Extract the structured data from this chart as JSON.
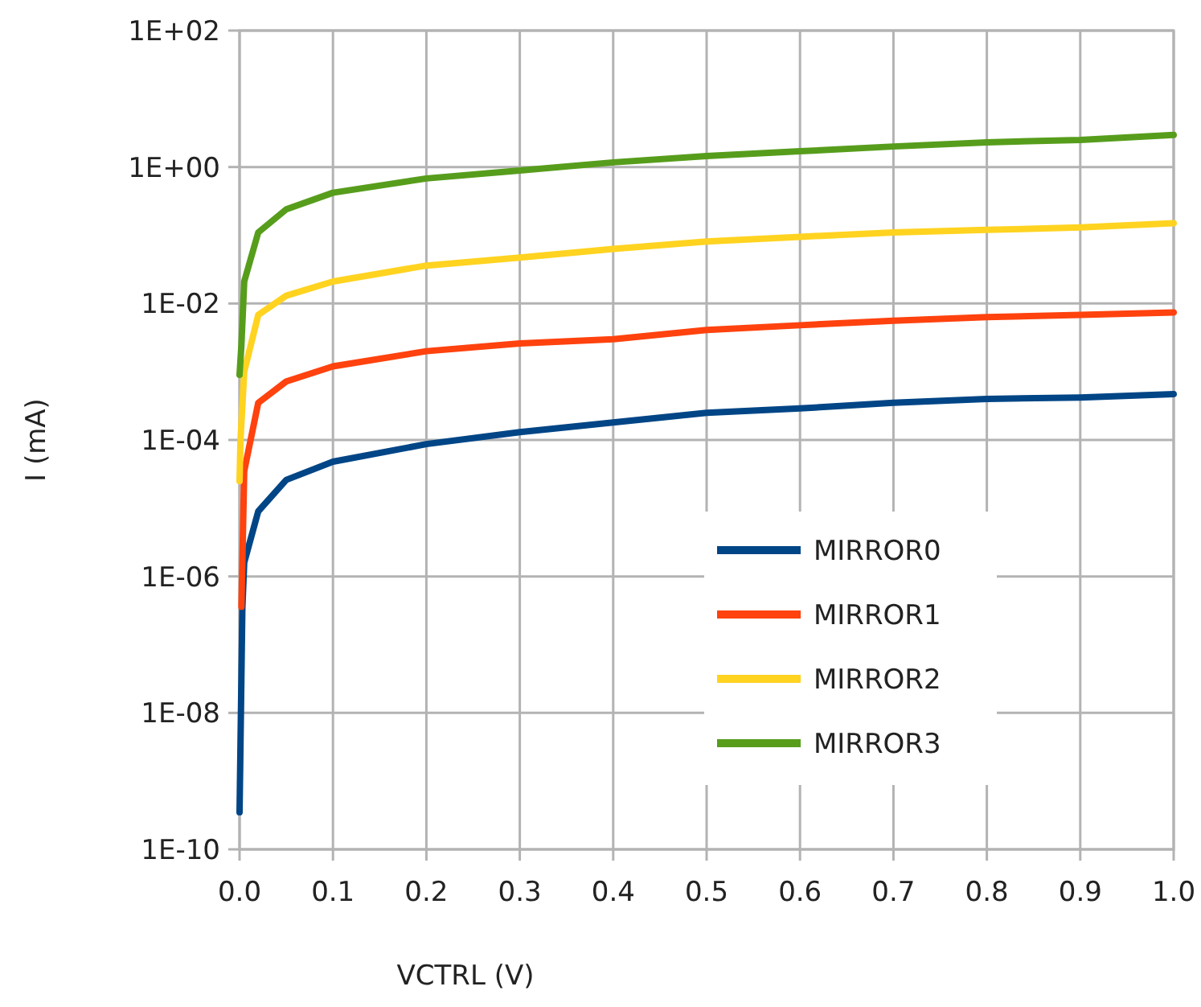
{
  "chart_data": {
    "type": "line",
    "xlabel": "VCTRL (V)",
    "ylabel": "I (mA)",
    "log": "y",
    "grid": true,
    "legend": "bottom right",
    "line_style": "solid",
    "marker": "none",
    "xlim": [
      0,
      1
    ],
    "xticks": [
      {
        "value": 0,
        "label": "0.0"
      },
      0.1,
      0.2,
      0.3,
      0.4,
      0.5,
      0.6,
      0.7,
      0.8,
      0.9,
      {
        "value": 1,
        "label": "1.0"
      }
    ],
    "ylim": [
      1e-10,
      100
    ],
    "yticks": [
      {
        "value": 1e-10,
        "label": "1E-10"
      },
      {
        "value": 1e-08,
        "label": "1E-08"
      },
      {
        "value": 1e-06,
        "label": "1E-06"
      },
      {
        "value": 0.0001,
        "label": "1E-04"
      },
      {
        "value": 0.01,
        "label": "1E-02"
      },
      {
        "value": 1,
        "label": "1E+00"
      },
      {
        "value": 100,
        "label": "1E+02"
      }
    ],
    "series": [
      {
        "name": "MIRROR0",
        "color": "#004586",
        "x": [
          0,
          0.003,
          0.005,
          0.02,
          0.05,
          0.1,
          0.2,
          0.3,
          0.4,
          0.5,
          0.6,
          0.7,
          0.8,
          0.9,
          1
        ],
        "values": [
          3.5e-10,
          3.4e-07,
          1.6e-06,
          9e-06,
          2.6e-05,
          4.8e-05,
          8.7e-05,
          0.00013,
          0.00018,
          0.00025,
          0.00029,
          0.00035,
          0.0004,
          0.00042,
          0.00047
        ]
      },
      {
        "name": "MIRROR1",
        "color": "#ff420e",
        "x": [
          0.002,
          0.005,
          0.02,
          0.05,
          0.1,
          0.2,
          0.3,
          0.4,
          0.5,
          0.6,
          0.7,
          0.8,
          0.9,
          1
        ],
        "values": [
          3.6e-07,
          3.5e-05,
          0.00035,
          0.00072,
          0.0012,
          0.002,
          0.0026,
          0.003,
          0.0041,
          0.0048,
          0.0056,
          0.0063,
          0.0068,
          0.0074
        ]
      },
      {
        "name": "MIRROR2",
        "color": "#ffd320",
        "x": [
          0,
          0.001,
          0.005,
          0.02,
          0.05,
          0.1,
          0.2,
          0.3,
          0.4,
          0.5,
          0.6,
          0.7,
          0.8,
          0.9,
          1
        ],
        "values": [
          2.5e-05,
          0.0001,
          0.001,
          0.0068,
          0.013,
          0.021,
          0.036,
          0.047,
          0.063,
          0.081,
          0.095,
          0.11,
          0.12,
          0.13,
          0.15
        ]
      },
      {
        "name": "MIRROR3",
        "color": "#579d1c",
        "x": [
          0,
          0.002,
          0.005,
          0.02,
          0.05,
          0.1,
          0.2,
          0.3,
          0.4,
          0.5,
          0.6,
          0.7,
          0.8,
          0.9,
          1
        ],
        "values": [
          0.0009,
          0.0025,
          0.021,
          0.11,
          0.24,
          0.42,
          0.68,
          0.89,
          1.17,
          1.45,
          1.7,
          2,
          2.3,
          2.5,
          2.95
        ]
      }
    ]
  }
}
